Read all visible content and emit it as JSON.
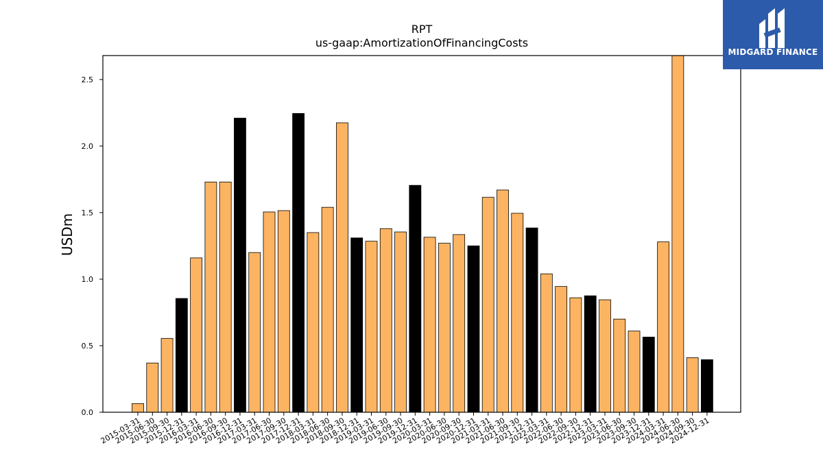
{
  "brand": {
    "name": "MIDGARD FINANCE",
    "background_color": "#2d5bab",
    "text_color": "#ffffff"
  },
  "chart_data": {
    "type": "bar",
    "title": "RPT",
    "subtitle": "us-gaap:AmortizationOfFinancingCosts",
    "xlabel": "",
    "ylabel": "USDm",
    "ylim": [
      0,
      2.68
    ],
    "yticks": [
      0.0,
      0.5,
      1.0,
      1.5,
      2.0,
      2.5
    ],
    "ytick_labels": [
      "0.0",
      "0.5",
      "1.0",
      "1.5",
      "2.0",
      "2.5"
    ],
    "grid": false,
    "legend": "none",
    "colors": {
      "quarterly": "#fdb462",
      "year_end": "#000000",
      "edge": "#000000"
    },
    "categories": [
      "2015-03-31",
      "2015-06-30",
      "2015-09-30",
      "2015-12-31",
      "2016-03-31",
      "2016-06-30",
      "2016-09-30",
      "2016-12-31",
      "2017-03-31",
      "2017-06-30",
      "2017-09-30",
      "2017-12-31",
      "2018-03-31",
      "2018-06-30",
      "2018-09-30",
      "2018-12-31",
      "2019-03-31",
      "2019-06-30",
      "2019-09-30",
      "2019-12-31",
      "2020-03-31",
      "2020-06-30",
      "2020-09-30",
      "2020-12-31",
      "2021-03-31",
      "2021-06-30",
      "2021-09-30",
      "2021-12-31",
      "2022-03-31",
      "2022-06-30",
      "2022-09-30",
      "2022-12-31",
      "2023-03-31",
      "2023-06-30",
      "2023-09-30",
      "2023-12-31",
      "2024-03-31",
      "2024-06-30",
      "2024-09-30",
      "2024-12-31"
    ],
    "values": [
      0.065,
      0.37,
      0.555,
      0.855,
      1.16,
      1.73,
      1.73,
      2.21,
      1.2,
      1.505,
      1.515,
      2.245,
      1.35,
      1.54,
      2.175,
      1.31,
      1.285,
      1.38,
      1.355,
      1.705,
      1.315,
      1.27,
      1.335,
      1.25,
      1.615,
      1.67,
      1.495,
      1.385,
      1.04,
      0.945,
      0.86,
      0.875,
      0.845,
      0.7,
      0.61,
      0.565,
      1.28,
      2.68,
      0.41,
      0.395
    ]
  }
}
